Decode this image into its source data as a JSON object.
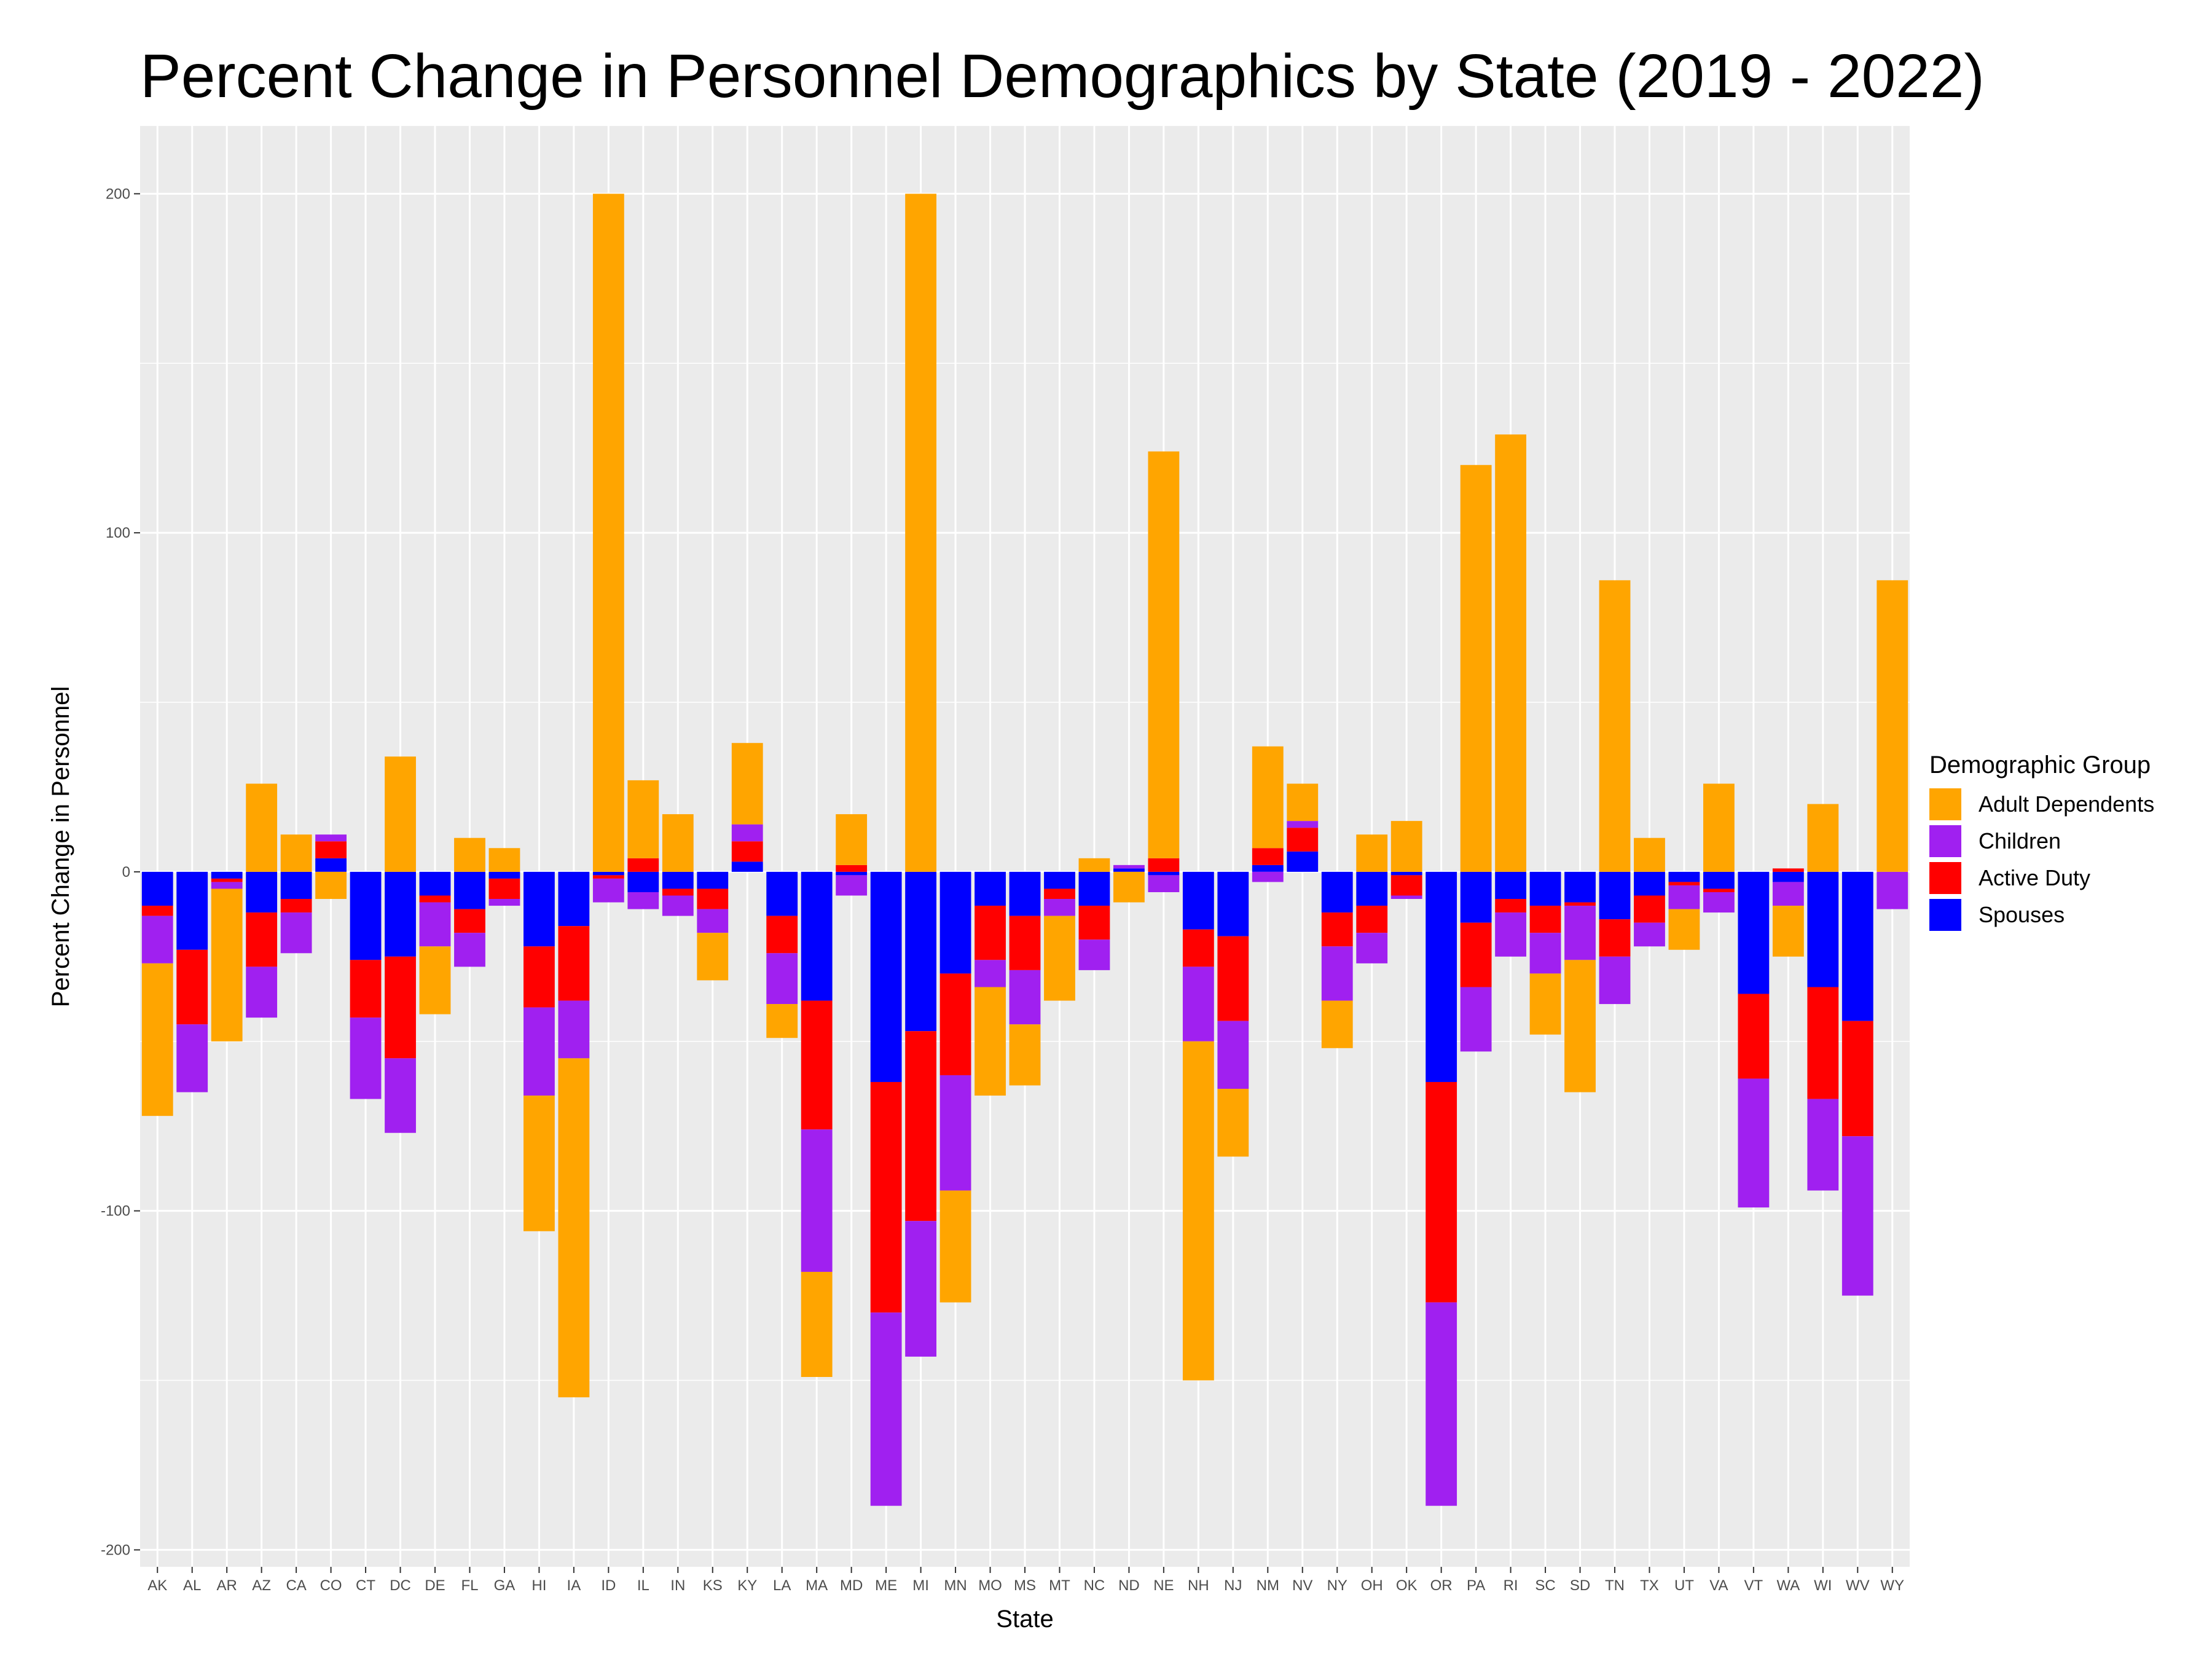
{
  "chart_data": {
    "type": "bar",
    "stacked": true,
    "title": "Percent Change in Personnel Demographics by State (2019 - 2022)",
    "xlabel": "State",
    "ylabel": "Percent Change in Personnel",
    "ylim": [
      -205,
      220
    ],
    "yticks": [
      -200,
      -100,
      0,
      100,
      200
    ],
    "grid": true,
    "legend_title": "Demographic Group",
    "legend_position": "right",
    "categories": [
      "AK",
      "AL",
      "AR",
      "AZ",
      "CA",
      "CO",
      "CT",
      "DC",
      "DE",
      "FL",
      "GA",
      "HI",
      "IA",
      "ID",
      "IL",
      "IN",
      "KS",
      "KY",
      "LA",
      "MA",
      "MD",
      "ME",
      "MI",
      "MN",
      "MO",
      "MS",
      "MT",
      "NC",
      "ND",
      "NE",
      "NH",
      "NJ",
      "NM",
      "NV",
      "NY",
      "OH",
      "OK",
      "OR",
      "PA",
      "RI",
      "SC",
      "SD",
      "TN",
      "TX",
      "UT",
      "VA",
      "VT",
      "WA",
      "WI",
      "WV",
      "WY"
    ],
    "series": [
      {
        "name": "Spouses",
        "color": "#0000FF",
        "values": [
          -10,
          -23,
          -2,
          -12,
          -8,
          4,
          -26,
          -25,
          -7,
          -11,
          -2,
          -22,
          -16,
          -1,
          -6,
          -5,
          -5,
          3,
          -13,
          -38,
          -1,
          -62,
          -47,
          -30,
          -10,
          -13,
          -5,
          -10,
          1,
          -1,
          -17,
          -19,
          2,
          6,
          -12,
          -10,
          -1,
          -62,
          -15,
          -8,
          -10,
          -9,
          -14,
          -7,
          -3,
          -5,
          -36,
          -3,
          -34,
          -44,
          0
        ]
      },
      {
        "name": "Active Duty",
        "color": "#FF0000",
        "values": [
          -3,
          -22,
          -1,
          -16,
          -4,
          5,
          -17,
          -30,
          -2,
          -7,
          -6,
          -18,
          -22,
          -1,
          4,
          -2,
          -6,
          6,
          -11,
          -38,
          2,
          -68,
          -56,
          -30,
          -16,
          -16,
          -3,
          -10,
          0,
          4,
          -11,
          -25,
          5,
          7,
          -10,
          -8,
          -6,
          -65,
          -19,
          -4,
          -8,
          -1,
          -11,
          -8,
          -1,
          -1,
          -25,
          1,
          -33,
          -34,
          0
        ]
      },
      {
        "name": "Children",
        "color": "#A020F0",
        "values": [
          -14,
          -20,
          -2,
          -15,
          -12,
          2,
          -24,
          -22,
          -13,
          -10,
          -2,
          -26,
          -17,
          -7,
          -5,
          -6,
          -7,
          5,
          -15,
          -42,
          -6,
          -57,
          -40,
          -34,
          -8,
          -16,
          -5,
          -9,
          1,
          -5,
          -22,
          -20,
          -3,
          2,
          -16,
          -9,
          -1,
          -60,
          -19,
          -13,
          -12,
          -16,
          -14,
          -7,
          -7,
          -6,
          -38,
          -7,
          -27,
          -47,
          -11
        ]
      },
      {
        "name": "Adult Dependents",
        "color": "#FFA500",
        "values": [
          -45,
          0,
          -45,
          26,
          11,
          -8,
          0,
          34,
          -20,
          10,
          7,
          -40,
          -100,
          200,
          23,
          17,
          -14,
          24,
          -10,
          -31,
          15,
          0,
          200,
          -33,
          -32,
          -18,
          -25,
          4,
          -9,
          120,
          -100,
          -20,
          30,
          11,
          -14,
          11,
          15,
          0,
          120,
          129,
          -18,
          -39,
          86,
          10,
          -12,
          26,
          0,
          -15,
          20,
          0,
          86
        ]
      }
    ],
    "legend_order": [
      "Adult Dependents",
      "Children",
      "Active Duty",
      "Spouses"
    ]
  }
}
